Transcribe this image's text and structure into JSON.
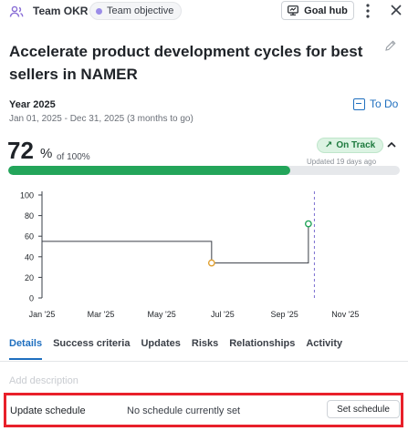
{
  "header": {
    "team_label": "Team OKR",
    "objective_chip": "Team objective",
    "goal_hub_label": "Goal hub",
    "icons": [
      "team-icon",
      "team-objective-dot-icon",
      "goal-hub-icon",
      "more-options-icon",
      "close-icon",
      "edit-icon"
    ]
  },
  "objective": {
    "title": "Accelerate product development cycles for best sellers in NAMER"
  },
  "period": {
    "title": "Year 2025",
    "dates": "Jan 01, 2025 - Dec 31, 2025 (3 months to go)"
  },
  "status": {
    "label": "To Do",
    "color": "#1f6fbf"
  },
  "progress": {
    "percent": "72",
    "percent_sign": "%",
    "of_label": "of 100%",
    "value": 0.72,
    "track_label": "On Track",
    "track_arrow": "↗",
    "updated": "Updated 19 days ago",
    "fill_color": "#23a55a"
  },
  "chart_data": {
    "type": "line",
    "x_ticks": [
      "Jan '25",
      "Mar '25",
      "May '25",
      "Jul '25",
      "Sep '25",
      "Nov '25"
    ],
    "y_ticks": [
      "0",
      "20",
      "40",
      "60",
      "80",
      "100"
    ],
    "ylim": [
      0,
      100
    ],
    "series": [
      {
        "points": [
          {
            "x": "2025-01-01",
            "y": 55
          },
          {
            "x": "2025-06-20",
            "y": 55
          },
          {
            "x": "2025-06-20",
            "y": 34
          },
          {
            "x": "2025-09-25",
            "y": 34
          },
          {
            "x": "2025-09-25",
            "y": 72
          }
        ],
        "markers": [
          {
            "x": "2025-06-20",
            "y": 34,
            "color": "#e0a030"
          },
          {
            "x": "2025-09-25",
            "y": 72,
            "color": "#23a55a"
          }
        ],
        "color": "#3a3f47"
      }
    ],
    "today_marker": "2025-10-01"
  },
  "tabs": [
    {
      "label": "Details",
      "active": true
    },
    {
      "label": "Success criteria",
      "active": false
    },
    {
      "label": "Updates",
      "active": false
    },
    {
      "label": "Risks",
      "active": false
    },
    {
      "label": "Relationships",
      "active": false
    },
    {
      "label": "Activity",
      "active": false
    }
  ],
  "details": {
    "description_placeholder": "Add description",
    "schedule_label": "Update schedule",
    "schedule_value": "No schedule currently set",
    "set_schedule_label": "Set schedule"
  }
}
